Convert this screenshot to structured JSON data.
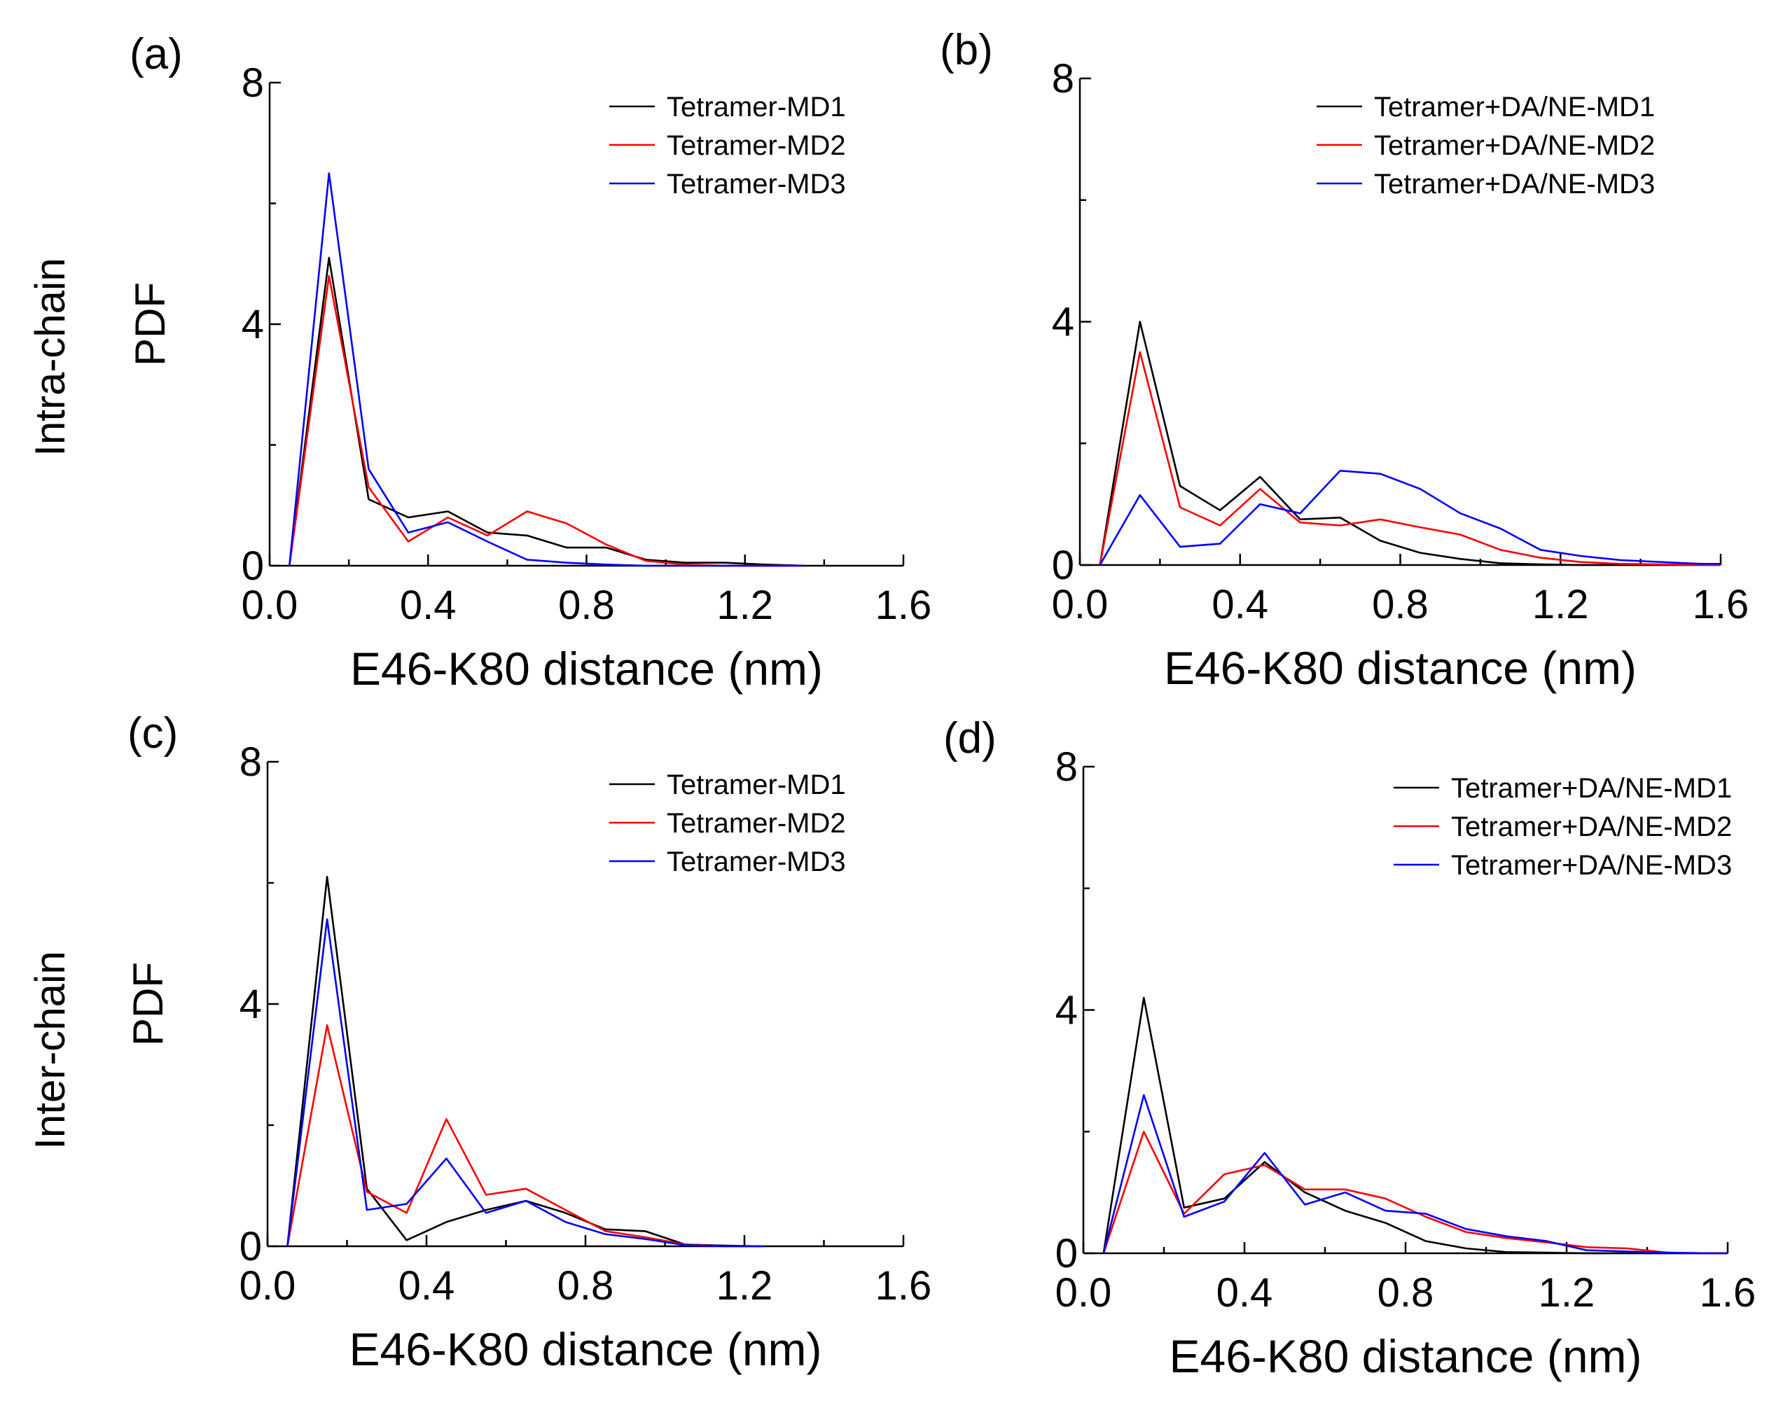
{
  "figure": {
    "row_labels": [
      "Intra-chain",
      "Inter-chain"
    ]
  },
  "chart_data": [
    {
      "type": "line",
      "panel": "(a)",
      "xlabel": "E46-K80 distance (nm)",
      "ylabel": "PDF",
      "xlim": [
        0.0,
        1.6
      ],
      "ylim": [
        0,
        8
      ],
      "xticks": [
        "0.0",
        "0.4",
        "0.8",
        "1.2",
        "1.6"
      ],
      "yticks": [
        "0",
        "4",
        "8"
      ],
      "legend_position": "top-right",
      "x": [
        0.05,
        0.15,
        0.25,
        0.35,
        0.45,
        0.55,
        0.65,
        0.75,
        0.85,
        0.95,
        1.05,
        1.15,
        1.25,
        1.35
      ],
      "series": [
        {
          "name": "Tetramer-MD1",
          "color": "#000000",
          "values": [
            0,
            5.1,
            1.1,
            0.8,
            0.9,
            0.55,
            0.5,
            0.3,
            0.3,
            0.1,
            0.05,
            0.05,
            0.02,
            0
          ]
        },
        {
          "name": "Tetramer-MD2",
          "color": "#ff0000",
          "values": [
            0,
            4.8,
            1.3,
            0.4,
            0.8,
            0.5,
            0.9,
            0.7,
            0.35,
            0.08,
            0.02,
            0,
            0,
            0
          ]
        },
        {
          "name": "Tetramer-MD3",
          "color": "#0000ff",
          "values": [
            0,
            6.5,
            1.6,
            0.55,
            0.72,
            0.4,
            0.1,
            0.05,
            0.02,
            0,
            0,
            0,
            0,
            0
          ]
        }
      ]
    },
    {
      "type": "line",
      "panel": "(b)",
      "xlabel": "E46-K80 distance (nm)",
      "ylabel": "",
      "xlim": [
        0.0,
        1.6
      ],
      "ylim": [
        0,
        8
      ],
      "xticks": [
        "0.0",
        "0.4",
        "0.8",
        "1.2",
        "1.6"
      ],
      "yticks": [
        "0",
        "4",
        "8"
      ],
      "legend_position": "top-right",
      "x": [
        0.05,
        0.15,
        0.25,
        0.35,
        0.45,
        0.55,
        0.65,
        0.75,
        0.85,
        0.95,
        1.05,
        1.15,
        1.25,
        1.35,
        1.45,
        1.55,
        1.6
      ],
      "series": [
        {
          "name": "Tetramer+DA/NE-MD1",
          "color": "#000000",
          "values": [
            0,
            4.0,
            1.3,
            0.9,
            1.45,
            0.75,
            0.78,
            0.4,
            0.2,
            0.1,
            0.03,
            0.01,
            0,
            0,
            0,
            0,
            0
          ]
        },
        {
          "name": "Tetramer+DA/NE-MD2",
          "color": "#ff0000",
          "values": [
            0,
            3.5,
            0.95,
            0.65,
            1.25,
            0.7,
            0.65,
            0.75,
            0.62,
            0.5,
            0.25,
            0.12,
            0.05,
            0.02,
            0.01,
            0,
            0
          ]
        },
        {
          "name": "Tetramer+DA/NE-MD3",
          "color": "#0000ff",
          "values": [
            0,
            1.15,
            0.3,
            0.35,
            1.0,
            0.85,
            1.55,
            1.5,
            1.25,
            0.85,
            0.6,
            0.25,
            0.15,
            0.08,
            0.05,
            0.02,
            0.02
          ]
        }
      ]
    },
    {
      "type": "line",
      "panel": "(c)",
      "xlabel": "E46-K80 distance (nm)",
      "ylabel": "PDF",
      "xlim": [
        0.0,
        1.6
      ],
      "ylim": [
        0,
        8
      ],
      "xticks": [
        "0.0",
        "0.4",
        "0.8",
        "1.2",
        "1.6"
      ],
      "yticks": [
        "0",
        "4",
        "8"
      ],
      "legend_position": "top-right",
      "x": [
        0.05,
        0.15,
        0.25,
        0.35,
        0.45,
        0.55,
        0.65,
        0.75,
        0.85,
        0.95,
        1.05,
        1.15,
        1.25
      ],
      "series": [
        {
          "name": "Tetramer-MD1",
          "color": "#000000",
          "values": [
            0,
            6.1,
            0.95,
            0.1,
            0.4,
            0.6,
            0.75,
            0.55,
            0.28,
            0.25,
            0.03,
            0.01,
            0
          ]
        },
        {
          "name": "Tetramer-MD2",
          "color": "#ff0000",
          "values": [
            0,
            3.65,
            0.9,
            0.55,
            2.1,
            0.85,
            0.95,
            0.6,
            0.25,
            0.15,
            0.03,
            0,
            0
          ]
        },
        {
          "name": "Tetramer-MD3",
          "color": "#0000ff",
          "values": [
            0,
            5.4,
            0.6,
            0.7,
            1.45,
            0.55,
            0.75,
            0.4,
            0.2,
            0.12,
            0.02,
            0,
            0
          ]
        }
      ]
    },
    {
      "type": "line",
      "panel": "(d)",
      "xlabel": "E46-K80 distance (nm)",
      "ylabel": "",
      "xlim": [
        0.0,
        1.6
      ],
      "ylim": [
        0,
        8
      ],
      "xticks": [
        "0.0",
        "0.4",
        "0.8",
        "1.2",
        "1.6"
      ],
      "yticks": [
        "0",
        "4",
        "8"
      ],
      "legend_position": "top-right",
      "x": [
        0.05,
        0.15,
        0.25,
        0.35,
        0.45,
        0.55,
        0.65,
        0.75,
        0.85,
        0.95,
        1.05,
        1.15,
        1.25,
        1.35,
        1.45,
        1.55,
        1.6
      ],
      "series": [
        {
          "name": "Tetramer+DA/NE-MD1",
          "color": "#000000",
          "values": [
            0,
            4.2,
            0.75,
            0.9,
            1.5,
            1.0,
            0.7,
            0.5,
            0.2,
            0.08,
            0.02,
            0.01,
            0,
            0,
            0,
            0,
            0
          ]
        },
        {
          "name": "Tetramer+DA/NE-MD2",
          "color": "#ff0000",
          "values": [
            0,
            2.0,
            0.65,
            1.3,
            1.45,
            1.05,
            1.05,
            0.9,
            0.6,
            0.35,
            0.25,
            0.18,
            0.1,
            0.08,
            0.01,
            0,
            0
          ]
        },
        {
          "name": "Tetramer+DA/NE-MD3",
          "color": "#0000ff",
          "values": [
            0,
            2.6,
            0.6,
            0.85,
            1.65,
            0.8,
            1.0,
            0.7,
            0.65,
            0.4,
            0.28,
            0.2,
            0.05,
            0.03,
            0.01,
            0,
            0
          ]
        }
      ]
    }
  ]
}
